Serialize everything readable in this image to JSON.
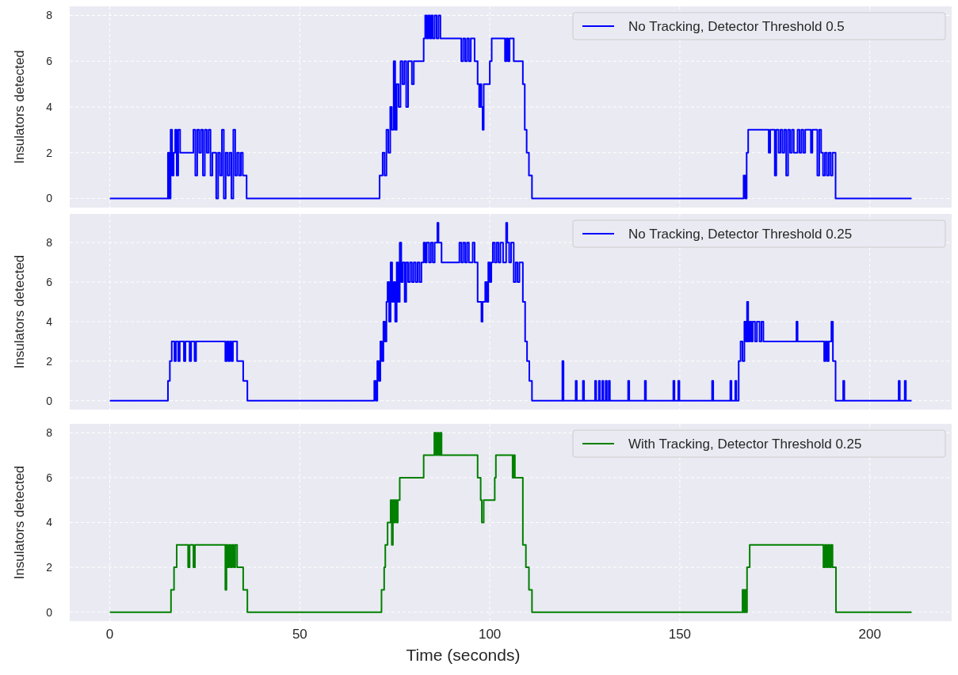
{
  "chart_data": [
    {
      "type": "step",
      "xlim": [
        -10.55,
        221.55
      ],
      "ylim": [
        -0.4,
        8.4
      ],
      "yticks": [
        0,
        2,
        4,
        6,
        8
      ],
      "xticks": [
        0,
        50,
        100,
        150,
        200
      ],
      "tick_labels": "y",
      "ylabel": "Insulators detected",
      "grid": true,
      "legend": "top right",
      "series": [
        {
          "name": "No Tracking, Detector Threshold 0.5",
          "color": "#0000ff",
          "x": [
            0,
            15.3,
            15.6,
            16,
            16.4,
            16.8,
            17.2,
            17.6,
            18,
            18.5,
            22,
            22.5,
            23,
            23.5,
            24,
            24.5,
            25,
            25.5,
            26,
            26.5,
            27,
            28,
            28.5,
            29,
            29.5,
            30,
            30.5,
            31,
            31.5,
            32,
            32.5,
            33,
            33.5,
            34,
            34.5,
            35,
            36,
            71,
            71.8,
            72.3,
            72.8,
            73.3,
            73.8,
            74.2,
            74.7,
            75.1,
            75.5,
            76,
            76.5,
            77,
            77.5,
            78,
            78.5,
            79.5,
            80,
            82.6,
            83,
            83.4,
            83.8,
            84.2,
            84.6,
            85,
            85.5,
            86,
            86.5,
            87,
            92.5,
            93,
            93.5,
            94,
            94.5,
            95,
            96,
            96.8,
            97.2,
            97.5,
            97.8,
            98.1,
            98.4,
            100,
            100.5,
            104,
            104.4,
            104.8,
            105.2,
            106.3,
            108.7,
            109.2,
            109.7,
            110.3,
            111.1,
            166.8,
            167.2,
            167.6,
            168,
            173.4,
            173.8,
            175,
            175.4,
            176,
            176.5,
            177,
            177.5,
            178,
            178.5,
            179,
            179.5,
            180,
            181,
            181.5,
            182,
            182.5,
            183,
            184.5,
            184.9,
            186.2,
            186.7,
            187.2,
            187.7,
            188.2,
            188.7,
            189.2,
            189.7,
            190.2,
            191,
            211
          ],
          "values": [
            0,
            2,
            0,
            3,
            1,
            2,
            3,
            1,
            3,
            2,
            3,
            1,
            3,
            2,
            3,
            1,
            3,
            2,
            3,
            1,
            2,
            0,
            2,
            1,
            3,
            0,
            2,
            1,
            2,
            0,
            3,
            1,
            2,
            1,
            2,
            1,
            0,
            1,
            2,
            1,
            3,
            2,
            4,
            3,
            6,
            3,
            5,
            4,
            6,
            5,
            6,
            4,
            6,
            5,
            6,
            7,
            8,
            7,
            8,
            7,
            8,
            7,
            8,
            7,
            8,
            7,
            6,
            7,
            6,
            7,
            6,
            7,
            6,
            5,
            4,
            5,
            4,
            3,
            5,
            6,
            7,
            6,
            7,
            6,
            7,
            6,
            5,
            3,
            2,
            1,
            0,
            1,
            0,
            2,
            3,
            2,
            3,
            1,
            3,
            2,
            3,
            2,
            3,
            1,
            3,
            2,
            3,
            2,
            3,
            2,
            3,
            2,
            3,
            2,
            3,
            1,
            3,
            2,
            1,
            2,
            1,
            2,
            1,
            2,
            0,
            0
          ]
        }
      ]
    },
    {
      "type": "step",
      "xlim": [
        -10.55,
        221.55
      ],
      "ylim": [
        -0.45,
        9.45
      ],
      "yticks": [
        0,
        2,
        4,
        6,
        8
      ],
      "xticks": [
        0,
        50,
        100,
        150,
        200
      ],
      "tick_labels": "y",
      "ylabel": "Insulators detected",
      "grid": true,
      "legend": "top right",
      "series": [
        {
          "name": "No Tracking, Detector Threshold 0.25",
          "color": "#0000ff",
          "x": [
            0,
            15.3,
            15.8,
            16.3,
            17,
            17.4,
            18,
            18.4,
            19.5,
            19.9,
            21,
            21.4,
            22.3,
            22.7,
            30.4,
            30.8,
            31.2,
            31.6,
            32,
            32.4,
            33.5,
            35.1,
            36.2,
            69.6,
            70,
            70.4,
            70.8,
            71.2,
            71.6,
            72,
            72.4,
            72.8,
            73.1,
            73.5,
            73.9,
            74.3,
            74.7,
            75.1,
            75.5,
            75.9,
            76.3,
            76.7,
            77.1,
            77.6,
            78,
            78.5,
            79,
            79.5,
            80,
            80.5,
            81,
            81.5,
            82,
            82.6,
            83,
            83.4,
            84,
            84.5,
            85,
            85.5,
            86.2,
            86.5,
            87.3,
            92,
            92.5,
            93,
            93.5,
            94,
            94.5,
            95.5,
            96,
            96.8,
            97.8,
            98.1,
            98.8,
            99.2,
            99.6,
            100,
            100.4,
            100.8,
            101.3,
            101.8,
            102.3,
            102.8,
            103.5,
            104.3,
            104.6,
            105.1,
            105.6,
            106.3,
            106.8,
            107.3,
            107.8,
            108.7,
            109.3,
            109.8,
            110.4,
            111.1,
            119.1,
            119.4,
            122.6,
            122.9,
            124.5,
            124.8,
            127.7,
            128,
            128.7,
            129,
            129.6,
            129.9,
            130.5,
            130.8,
            131.3,
            131.6,
            136.4,
            136.7,
            140.8,
            141.1,
            148.3,
            148.6,
            149.6,
            149.9,
            158.5,
            158.8,
            163.3,
            163.6,
            164.6,
            164.9,
            165.5,
            166,
            166.5,
            167,
            167.4,
            167.7,
            168,
            168.4,
            168.8,
            169.2,
            169.8,
            170.3,
            171,
            171.5,
            172,
            180.7,
            181,
            188,
            188.4,
            188.8,
            189.2,
            189.9,
            190.3,
            191,
            193,
            193.3,
            207.6,
            207.9,
            209.2,
            209.5,
            211
          ],
          "values": [
            0,
            1,
            2,
            3,
            2,
            3,
            2,
            3,
            2,
            3,
            2,
            3,
            2,
            3,
            2,
            3,
            2,
            3,
            2,
            3,
            2,
            1,
            0,
            1,
            0,
            2,
            1,
            3,
            2,
            4,
            3,
            5,
            6,
            4,
            7,
            5,
            6,
            4,
            7,
            5,
            8,
            6,
            7,
            5,
            7,
            6,
            7,
            6,
            7,
            6,
            7,
            6,
            7,
            8,
            7,
            8,
            7,
            8,
            7,
            8,
            9,
            8,
            7,
            8,
            7,
            8,
            7,
            8,
            7,
            8,
            7,
            5,
            4,
            5,
            6,
            5,
            7,
            6,
            7,
            8,
            7,
            8,
            7,
            8,
            7,
            9,
            8,
            7,
            8,
            6,
            7,
            6,
            7,
            5,
            3,
            2,
            1,
            0,
            2,
            0,
            1,
            0,
            1,
            0,
            1,
            0,
            1,
            0,
            1,
            0,
            1,
            0,
            1,
            0,
            1,
            0,
            1,
            0,
            1,
            0,
            1,
            0,
            1,
            0,
            1,
            0,
            1,
            0,
            2,
            3,
            2,
            4,
            3,
            5,
            3,
            4,
            3,
            4,
            3,
            4,
            3,
            4,
            3,
            4,
            3,
            2,
            3,
            2,
            3,
            4,
            2,
            0,
            1,
            0,
            1,
            0,
            1,
            0,
            0
          ]
        }
      ]
    },
    {
      "type": "step",
      "xlim": [
        -10.55,
        221.55
      ],
      "ylim": [
        -0.4,
        8.4
      ],
      "yticks": [
        0,
        2,
        4,
        6,
        8
      ],
      "xticks": [
        0,
        50,
        100,
        150,
        200
      ],
      "xlabel": "Time (seconds)",
      "ylabel": "Insulators detected",
      "grid": true,
      "legend": "top right",
      "series": [
        {
          "name": "With Tracking, Detector Threshold 0.25",
          "color": "#008000",
          "x": [
            0,
            16.1,
            16.9,
            17.6,
            20.6,
            21,
            22,
            22.4,
            30.4,
            30.7,
            31,
            31.4,
            31.8,
            32.2,
            32.6,
            33,
            33.5,
            35.1,
            36.2,
            71.5,
            72.2,
            72.5,
            73.1,
            73.9,
            74.2,
            74.5,
            74.8,
            75.1,
            75.5,
            75.8,
            76.3,
            82.6,
            85.4,
            85.8,
            86.2,
            86.6,
            87,
            87.3,
            96.8,
            97.6,
            97.9,
            98.4,
            101.3,
            101.6,
            106,
            106.3,
            106.6,
            108.7,
            109.5,
            110.3,
            111.1,
            166.5,
            166.8,
            167.1,
            167.4,
            167.7,
            168.4,
            187.8,
            188.2,
            188.6,
            189,
            189.4,
            189.8,
            190.2,
            191.1,
            211
          ],
          "values": [
            0,
            1,
            2,
            3,
            2,
            3,
            2,
            3,
            1,
            3,
            2,
            3,
            2,
            3,
            2,
            3,
            2,
            1,
            0,
            1,
            2,
            3,
            4,
            5,
            3,
            5,
            4,
            5,
            4,
            5,
            6,
            7,
            8,
            7,
            8,
            7,
            8,
            7,
            6,
            5,
            4,
            5,
            6,
            7,
            6,
            7,
            6,
            3,
            2,
            1,
            0,
            1,
            0,
            1,
            0,
            2,
            3,
            2,
            3,
            2,
            3,
            2,
            3,
            2,
            0,
            0
          ]
        }
      ]
    }
  ]
}
